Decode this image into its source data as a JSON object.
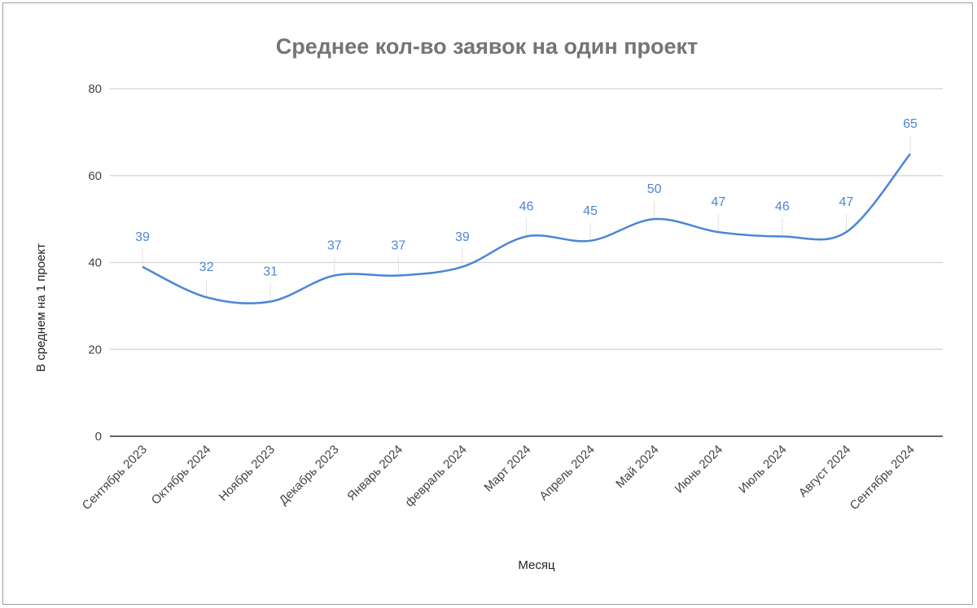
{
  "chart_data": {
    "type": "line",
    "title": "Среднее кол-во заявок на один проект",
    "xlabel": "Месяц",
    "ylabel": "В среднем на 1 проект",
    "categories": [
      "Сентябрь 2023",
      "Октябрь 2024",
      "Ноябрь 2023",
      "Декабрь 2023",
      "Январь 2024",
      "февраль 2024",
      "Март 2024",
      "Апрель 2024",
      "Май 2024",
      "Июнь 2024",
      "Июль 2024",
      "Август 2024",
      "Сентябрь 2024"
    ],
    "series": [
      {
        "name": "В среднем на 1 проект",
        "values": [
          39,
          32,
          31,
          37,
          37,
          39,
          46,
          45,
          50,
          47,
          46,
          47,
          65
        ],
        "color": "#4a86d8"
      }
    ],
    "ylim": [
      0,
      80
    ],
    "yticks": [
      0,
      20,
      40,
      60,
      80
    ],
    "grid": true,
    "smooth": true,
    "data_labels": true,
    "legend": "none"
  }
}
